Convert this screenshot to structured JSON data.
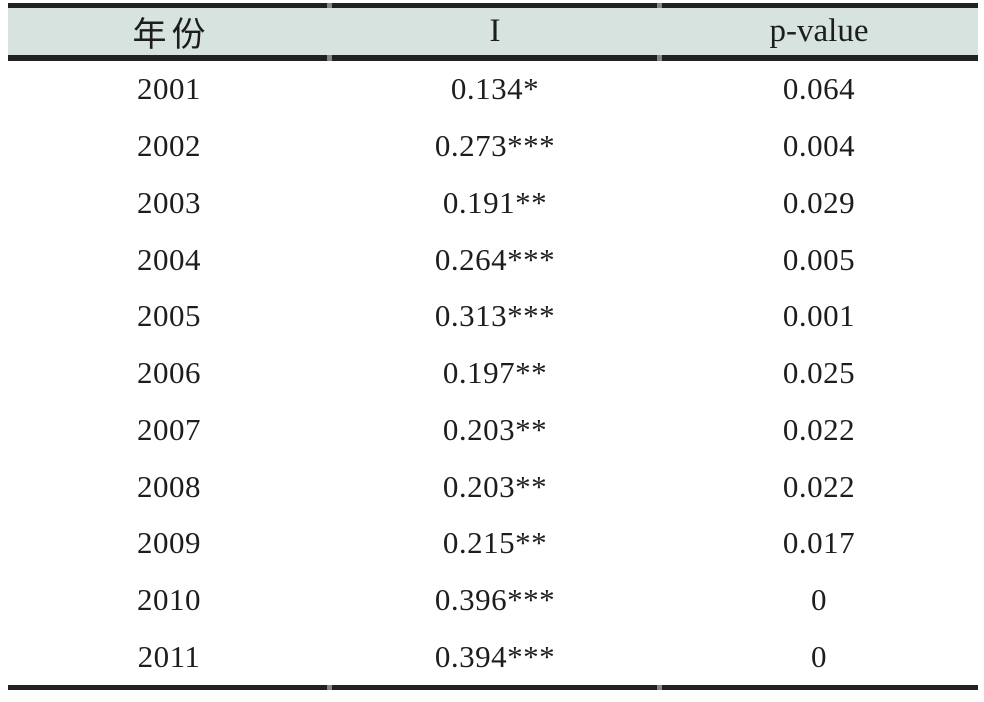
{
  "page": {
    "background": "#ffffff"
  },
  "table": {
    "style": {
      "header_bg": "#d6e3df",
      "rule_color": "#212121",
      "text_color": "#1d1d1d"
    },
    "header": {
      "year": "年份",
      "i": "I",
      "pvalue": "p-value"
    },
    "rows": [
      {
        "year": "2001",
        "i": "0.134*",
        "p": "0.064"
      },
      {
        "year": "2002",
        "i": "0.273***",
        "p": "0.004"
      },
      {
        "year": "2003",
        "i": "0.191**",
        "p": "0.029"
      },
      {
        "year": "2004",
        "i": "0.264***",
        "p": "0.005"
      },
      {
        "year": "2005",
        "i": "0.313***",
        "p": "0.001"
      },
      {
        "year": "2006",
        "i": "0.197**",
        "p": "0.025"
      },
      {
        "year": "2007",
        "i": "0.203**",
        "p": "0.022"
      },
      {
        "year": "2008",
        "i": "0.203**",
        "p": "0.022"
      },
      {
        "year": "2009",
        "i": "0.215**",
        "p": "0.017"
      },
      {
        "year": "2010",
        "i": "0.396***",
        "p": "0"
      },
      {
        "year": "2011",
        "i": "0.394***",
        "p": "0"
      }
    ]
  },
  "chart_data": {
    "type": "table",
    "columns": [
      "年份",
      "I",
      "p-value"
    ],
    "rows": [
      [
        "2001",
        "0.134*",
        "0.064"
      ],
      [
        "2002",
        "0.273***",
        "0.004"
      ],
      [
        "2003",
        "0.191**",
        "0.029"
      ],
      [
        "2004",
        "0.264***",
        "0.005"
      ],
      [
        "2005",
        "0.313***",
        "0.001"
      ],
      [
        "2006",
        "0.197**",
        "0.025"
      ],
      [
        "2007",
        "0.203**",
        "0.022"
      ],
      [
        "2008",
        "0.203**",
        "0.022"
      ],
      [
        "2009",
        "0.215**",
        "0.017"
      ],
      [
        "2010",
        "0.396***",
        "0"
      ],
      [
        "2011",
        "0.394***",
        "0"
      ]
    ]
  }
}
